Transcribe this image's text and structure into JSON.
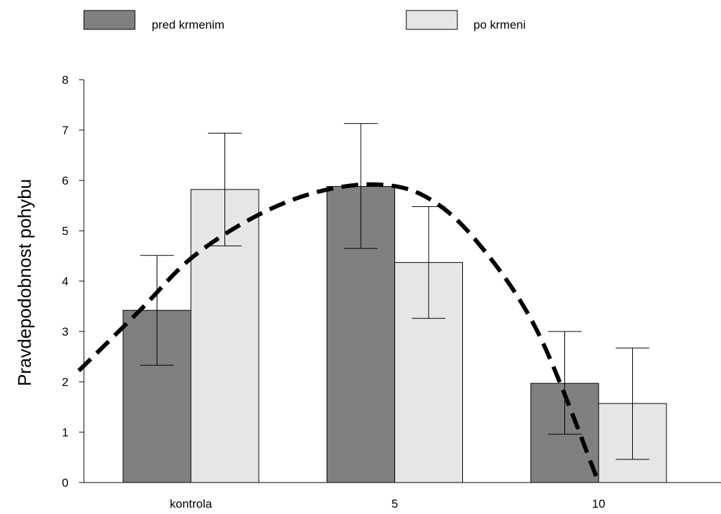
{
  "chart_data": {
    "type": "bar",
    "title": "",
    "xlabel": "",
    "ylabel": "Pravdepodobnost pohybu",
    "ylim": [
      0,
      8
    ],
    "yticks": [
      0,
      1,
      2,
      3,
      4,
      5,
      6,
      7,
      8
    ],
    "grid": false,
    "legend_position": "top",
    "categories": [
      "kontrola",
      "5",
      "10"
    ],
    "series": [
      {
        "name": "pred krmenim",
        "color": "#808080",
        "values": [
          3.42,
          5.88,
          1.97
        ],
        "error_low": [
          2.33,
          4.65,
          0.96
        ],
        "error_high": [
          4.51,
          7.13,
          3.0
        ]
      },
      {
        "name": "po krmeni",
        "color": "#e6e6e6",
        "values": [
          5.82,
          4.37,
          1.57
        ],
        "error_low": [
          4.7,
          3.26,
          0.46
        ],
        "error_high": [
          6.94,
          5.48,
          2.67
        ]
      }
    ],
    "trend_curve": {
      "style": "dashed",
      "color": "#000000",
      "x": [
        -0.55,
        -0.25,
        0.0,
        0.3,
        0.6,
        0.9,
        1.15,
        1.4,
        1.7,
        2.0
      ],
      "y": [
        2.22,
        3.42,
        4.45,
        5.25,
        5.75,
        5.92,
        5.68,
        4.8,
        3.0,
        0.0
      ]
    }
  }
}
